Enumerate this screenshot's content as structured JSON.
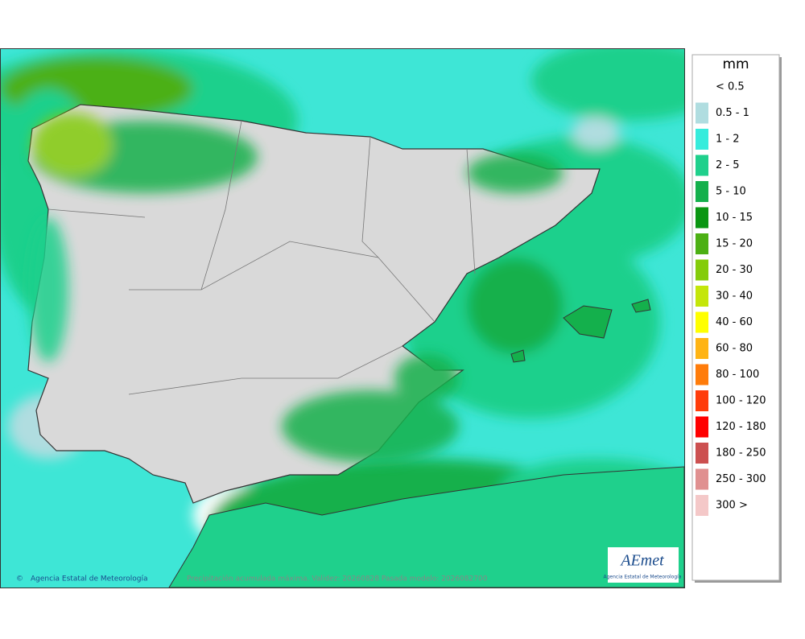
{
  "legend": {
    "unit": "mm",
    "items": [
      {
        "label": "< 0.5",
        "color": "#ffffff"
      },
      {
        "label": "0.5 - 1",
        "color": "#b0dde0"
      },
      {
        "label": "1 - 2",
        "color": "#36ecdc"
      },
      {
        "label": "2 - 5",
        "color": "#1fd08c"
      },
      {
        "label": "5 - 10",
        "color": "#14b04c"
      },
      {
        "label": "10 - 15",
        "color": "#0a9612"
      },
      {
        "label": "15 - 20",
        "color": "#4cb014"
      },
      {
        "label": "20 - 30",
        "color": "#84cc0a"
      },
      {
        "label": "30 - 40",
        "color": "#c4e60a"
      },
      {
        "label": "40 - 60",
        "color": "#ffff00"
      },
      {
        "label": "60 - 80",
        "color": "#ffb414"
      },
      {
        "label": "80 - 100",
        "color": "#ff7c0a"
      },
      {
        "label": "100 - 120",
        "color": "#ff3c0a"
      },
      {
        "label": "120 - 180",
        "color": "#ff0000"
      },
      {
        "label": "180 - 250",
        "color": "#cc5050"
      },
      {
        "label": "250 - 300",
        "color": "#e09090"
      },
      {
        "label": "300 >",
        "color": "#f4c8c8"
      }
    ]
  },
  "footer": {
    "credit": "Agencia Estatal de Meteorología",
    "caption": "Precipitación acumulada máxima. Validez: 20260828 Pasada modelo: 2026082700"
  },
  "logo": {
    "name": "AEmet",
    "subtitle": "Agencia Estatal de Meteorología"
  }
}
